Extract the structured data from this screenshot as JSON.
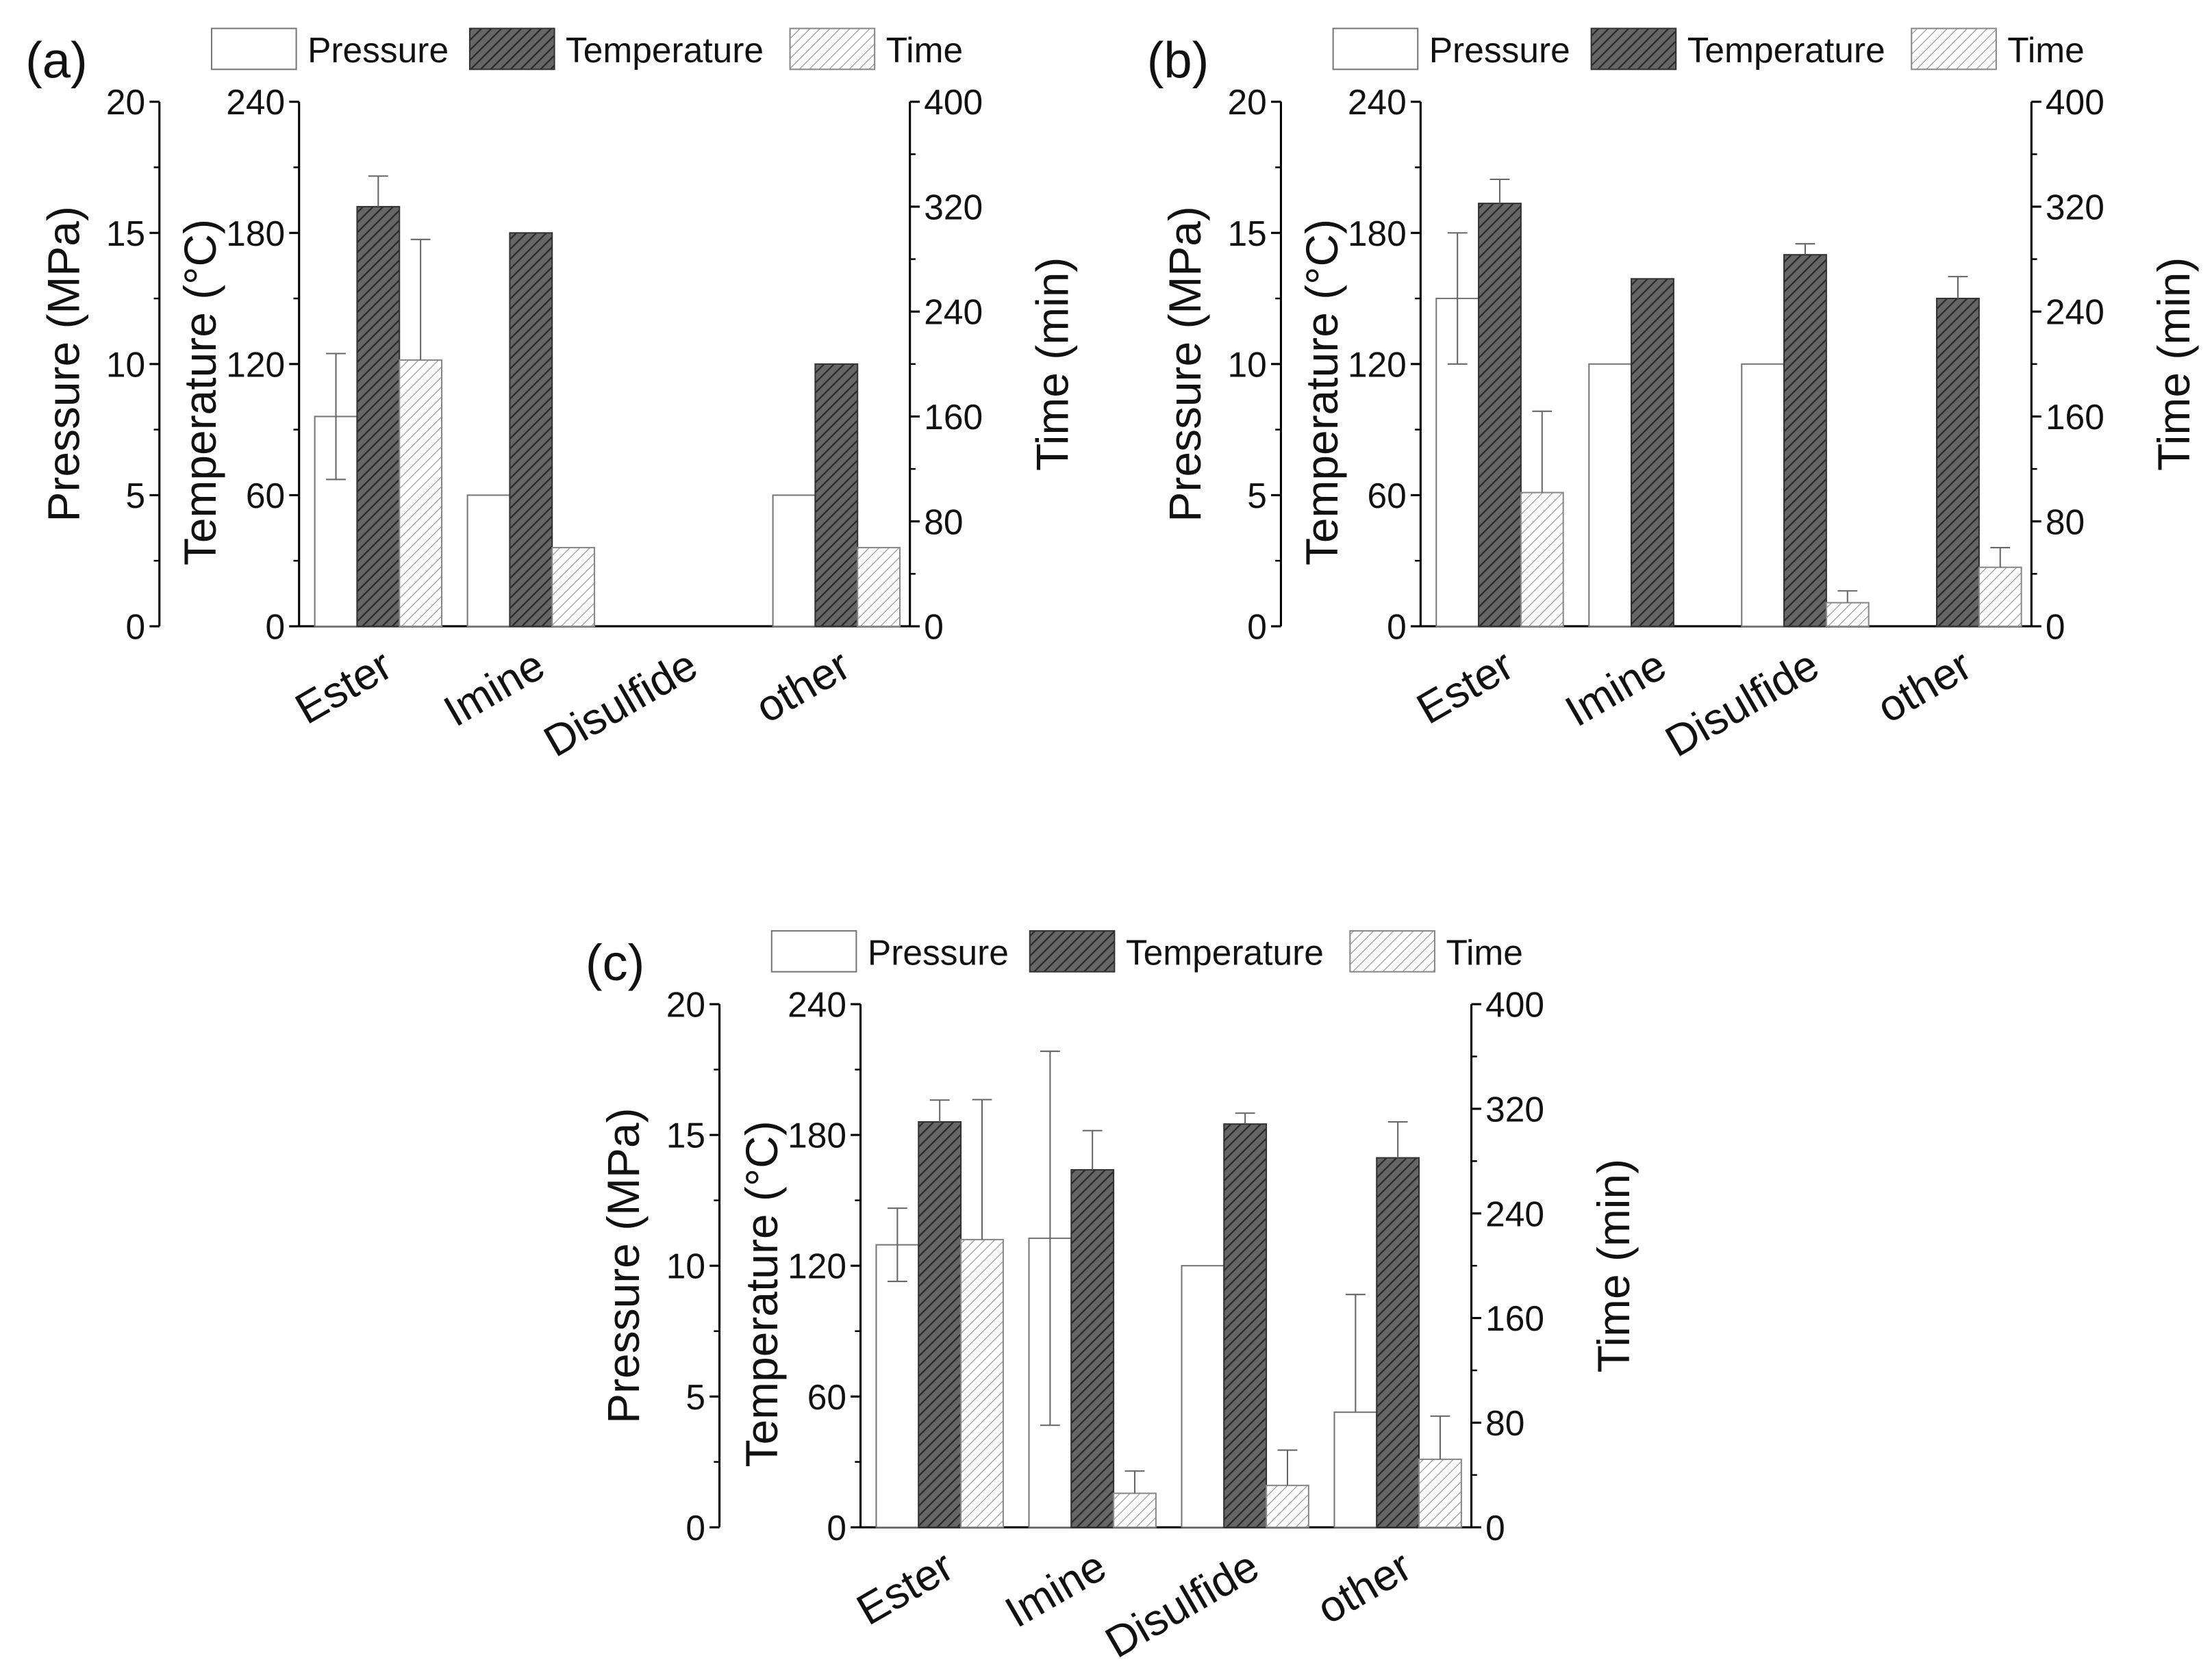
{
  "chart_data": [
    {
      "type": "bar",
      "panel_label": "(a)",
      "categories": [
        "Ester",
        "Imine",
        "Disulfide",
        "other"
      ],
      "legend": [
        "Pressure",
        "Temperature",
        "Time"
      ],
      "legend_position": "top",
      "axes": {
        "pressure": {
          "label": "Pressure (MPa)",
          "range": [
            0,
            20
          ],
          "ticks": [
            0,
            5,
            10,
            15,
            20
          ]
        },
        "temperature": {
          "label": "Temperature (°C)",
          "range": [
            0,
            240
          ],
          "ticks": [
            0,
            60,
            120,
            180,
            240
          ]
        },
        "time": {
          "label": "Time (min)",
          "range": [
            0,
            400
          ],
          "ticks": [
            0,
            80,
            160,
            240,
            320,
            400
          ]
        }
      },
      "series": [
        {
          "name": "Pressure",
          "values": [
            8.0,
            5.0,
            0,
            5.0
          ],
          "err_upper": [
            10.4,
            null,
            null,
            null
          ],
          "err_lower": [
            5.6,
            null,
            null,
            null
          ]
        },
        {
          "name": "Temperature",
          "values": [
            192,
            180,
            0,
            120
          ],
          "err_upper": [
            206,
            null,
            null,
            null
          ],
          "err_lower": [
            null,
            null,
            null,
            null
          ]
        },
        {
          "name": "Time",
          "values": [
            203,
            60,
            0,
            60
          ],
          "err_upper": [
            295,
            null,
            null,
            null
          ],
          "err_lower": [
            null,
            null,
            null,
            null
          ]
        }
      ]
    },
    {
      "type": "bar",
      "panel_label": "(b)",
      "categories": [
        "Ester",
        "Imine",
        "Disulfide",
        "other"
      ],
      "legend": [
        "Pressure",
        "Temperature",
        "Time"
      ],
      "legend_position": "top",
      "axes": {
        "pressure": {
          "label": "Pressure (MPa)",
          "range": [
            0,
            20
          ],
          "ticks": [
            0,
            5,
            10,
            15,
            20
          ]
        },
        "temperature": {
          "label": "Temperature (°C)",
          "range": [
            0,
            240
          ],
          "ticks": [
            0,
            60,
            120,
            180,
            240
          ]
        },
        "time": {
          "label": "Time (min)",
          "range": [
            0,
            400
          ],
          "ticks": [
            0,
            80,
            160,
            240,
            320,
            400
          ]
        }
      },
      "series": [
        {
          "name": "Pressure",
          "values": [
            12.5,
            10,
            10,
            0
          ],
          "err_upper": [
            15,
            null,
            null,
            null
          ],
          "err_lower": [
            10,
            null,
            null,
            null
          ]
        },
        {
          "name": "Temperature",
          "values": [
            193.5,
            159,
            170,
            150
          ],
          "err_upper": [
            204.5,
            null,
            175,
            160
          ],
          "err_lower": [
            null,
            null,
            null,
            null
          ]
        },
        {
          "name": "Time",
          "values": [
            102,
            0,
            18,
            45
          ],
          "err_upper": [
            164,
            null,
            27,
            60
          ],
          "err_lower": [
            null,
            null,
            null,
            null
          ]
        }
      ]
    },
    {
      "type": "bar",
      "panel_label": "(c)",
      "categories": [
        "Ester",
        "Imine",
        "Disulfide",
        "other"
      ],
      "legend": [
        "Pressure",
        "Temperature",
        "Time"
      ],
      "legend_position": "top",
      "axes": {
        "pressure": {
          "label": "Pressure (MPa)",
          "range": [
            0,
            20
          ],
          "ticks": [
            0,
            5,
            10,
            15,
            20
          ]
        },
        "temperature": {
          "label": "Temperature (°C)",
          "range": [
            0,
            240
          ],
          "ticks": [
            0,
            60,
            120,
            180,
            240
          ]
        },
        "time": {
          "label": "Time (min)",
          "range": [
            0,
            400
          ],
          "ticks": [
            0,
            80,
            160,
            240,
            320,
            400
          ]
        }
      },
      "series": [
        {
          "name": "Pressure",
          "values": [
            10.8,
            11.05,
            10,
            4.4
          ],
          "err_upper": [
            12.2,
            18.2,
            null,
            8.9
          ],
          "err_lower": [
            9.4,
            3.9,
            null,
            null
          ]
        },
        {
          "name": "Temperature",
          "values": [
            186,
            164,
            185,
            169.5
          ],
          "err_upper": [
            196,
            182,
            190,
            186
          ],
          "err_lower": [
            null,
            null,
            null,
            null
          ]
        },
        {
          "name": "Time",
          "values": [
            220,
            26,
            32,
            52
          ],
          "err_upper": [
            327,
            43,
            59,
            85
          ],
          "err_lower": [
            null,
            null,
            null,
            null
          ]
        }
      ]
    }
  ]
}
